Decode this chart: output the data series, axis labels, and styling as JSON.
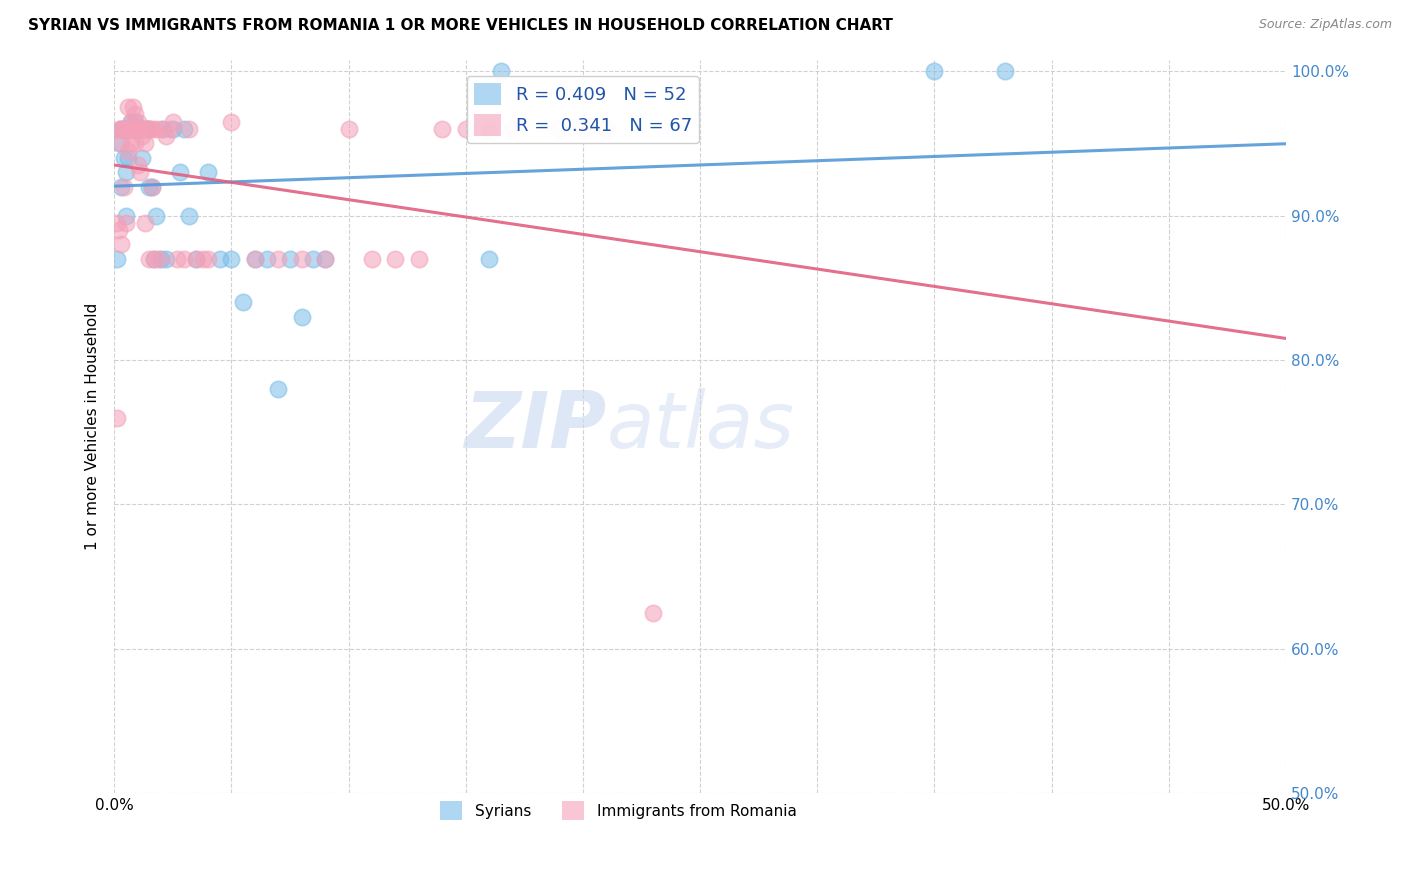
{
  "title": "SYRIAN VS IMMIGRANTS FROM ROMANIA 1 OR MORE VEHICLES IN HOUSEHOLD CORRELATION CHART",
  "source": "Source: ZipAtlas.com",
  "ylabel": "1 or more Vehicles in Household",
  "xlim": [
    0.0,
    0.5
  ],
  "ylim": [
    0.5,
    1.008
  ],
  "xticks": [
    0.0,
    0.05,
    0.1,
    0.15,
    0.2,
    0.25,
    0.3,
    0.35,
    0.4,
    0.45,
    0.5
  ],
  "yticks": [
    0.5,
    0.6,
    0.7,
    0.8,
    0.9,
    1.0
  ],
  "yticklabels": [
    "50.0%",
    "60.0%",
    "70.0%",
    "80.0%",
    "90.0%",
    "100.0%"
  ],
  "syrians_color": "#7BBDE8",
  "romania_color": "#F4A0B8",
  "trend_syrians_color": "#5599D8",
  "trend_romania_color": "#E06080",
  "R_syrians": 0.409,
  "N_syrians": 52,
  "R_romania": 0.341,
  "N_romania": 67,
  "watermark_zip": "ZIP",
  "watermark_atlas": "atlas",
  "syrians_x": [
    0.001,
    0.002,
    0.003,
    0.003,
    0.004,
    0.004,
    0.005,
    0.005,
    0.005,
    0.006,
    0.006,
    0.006,
    0.007,
    0.007,
    0.008,
    0.008,
    0.009,
    0.009,
    0.01,
    0.01,
    0.011,
    0.012,
    0.013,
    0.014,
    0.015,
    0.015,
    0.016,
    0.017,
    0.018,
    0.02,
    0.021,
    0.022,
    0.025,
    0.028,
    0.03,
    0.032,
    0.035,
    0.04,
    0.045,
    0.05,
    0.055,
    0.06,
    0.065,
    0.07,
    0.075,
    0.08,
    0.085,
    0.09,
    0.16,
    0.165,
    0.35,
    0.38
  ],
  "syrians_y": [
    0.87,
    0.95,
    0.92,
    0.96,
    0.94,
    0.96,
    0.96,
    0.93,
    0.9,
    0.96,
    0.96,
    0.94,
    0.965,
    0.96,
    0.96,
    0.96,
    0.965,
    0.96,
    0.96,
    0.96,
    0.96,
    0.94,
    0.96,
    0.96,
    0.96,
    0.92,
    0.92,
    0.87,
    0.9,
    0.87,
    0.96,
    0.87,
    0.96,
    0.93,
    0.96,
    0.9,
    0.87,
    0.93,
    0.87,
    0.87,
    0.84,
    0.87,
    0.87,
    0.78,
    0.87,
    0.83,
    0.87,
    0.87,
    0.87,
    1.0,
    1.0,
    1.0
  ],
  "romania_x": [
    0.001,
    0.001,
    0.002,
    0.002,
    0.003,
    0.003,
    0.003,
    0.004,
    0.004,
    0.005,
    0.005,
    0.005,
    0.006,
    0.006,
    0.006,
    0.007,
    0.007,
    0.007,
    0.008,
    0.008,
    0.008,
    0.009,
    0.009,
    0.01,
    0.01,
    0.01,
    0.011,
    0.011,
    0.012,
    0.012,
    0.013,
    0.013,
    0.014,
    0.015,
    0.015,
    0.016,
    0.016,
    0.017,
    0.018,
    0.019,
    0.02,
    0.022,
    0.024,
    0.025,
    0.027,
    0.03,
    0.032,
    0.035,
    0.038,
    0.04,
    0.05,
    0.06,
    0.07,
    0.08,
    0.09,
    0.1,
    0.11,
    0.12,
    0.13,
    0.14,
    0.15,
    0.16,
    0.17,
    0.19,
    0.2,
    0.21,
    0.23
  ],
  "romania_y": [
    0.76,
    0.895,
    0.96,
    0.89,
    0.96,
    0.95,
    0.88,
    0.96,
    0.92,
    0.96,
    0.96,
    0.895,
    0.975,
    0.96,
    0.945,
    0.965,
    0.96,
    0.95,
    0.975,
    0.96,
    0.96,
    0.97,
    0.95,
    0.965,
    0.935,
    0.96,
    0.96,
    0.93,
    0.955,
    0.96,
    0.95,
    0.895,
    0.96,
    0.87,
    0.96,
    0.92,
    0.96,
    0.87,
    0.96,
    0.87,
    0.96,
    0.955,
    0.96,
    0.965,
    0.87,
    0.87,
    0.96,
    0.87,
    0.87,
    0.87,
    0.965,
    0.87,
    0.87,
    0.87,
    0.87,
    0.96,
    0.87,
    0.87,
    0.87,
    0.96,
    0.96,
    0.96,
    0.96,
    0.96,
    0.96,
    0.96,
    0.625
  ]
}
